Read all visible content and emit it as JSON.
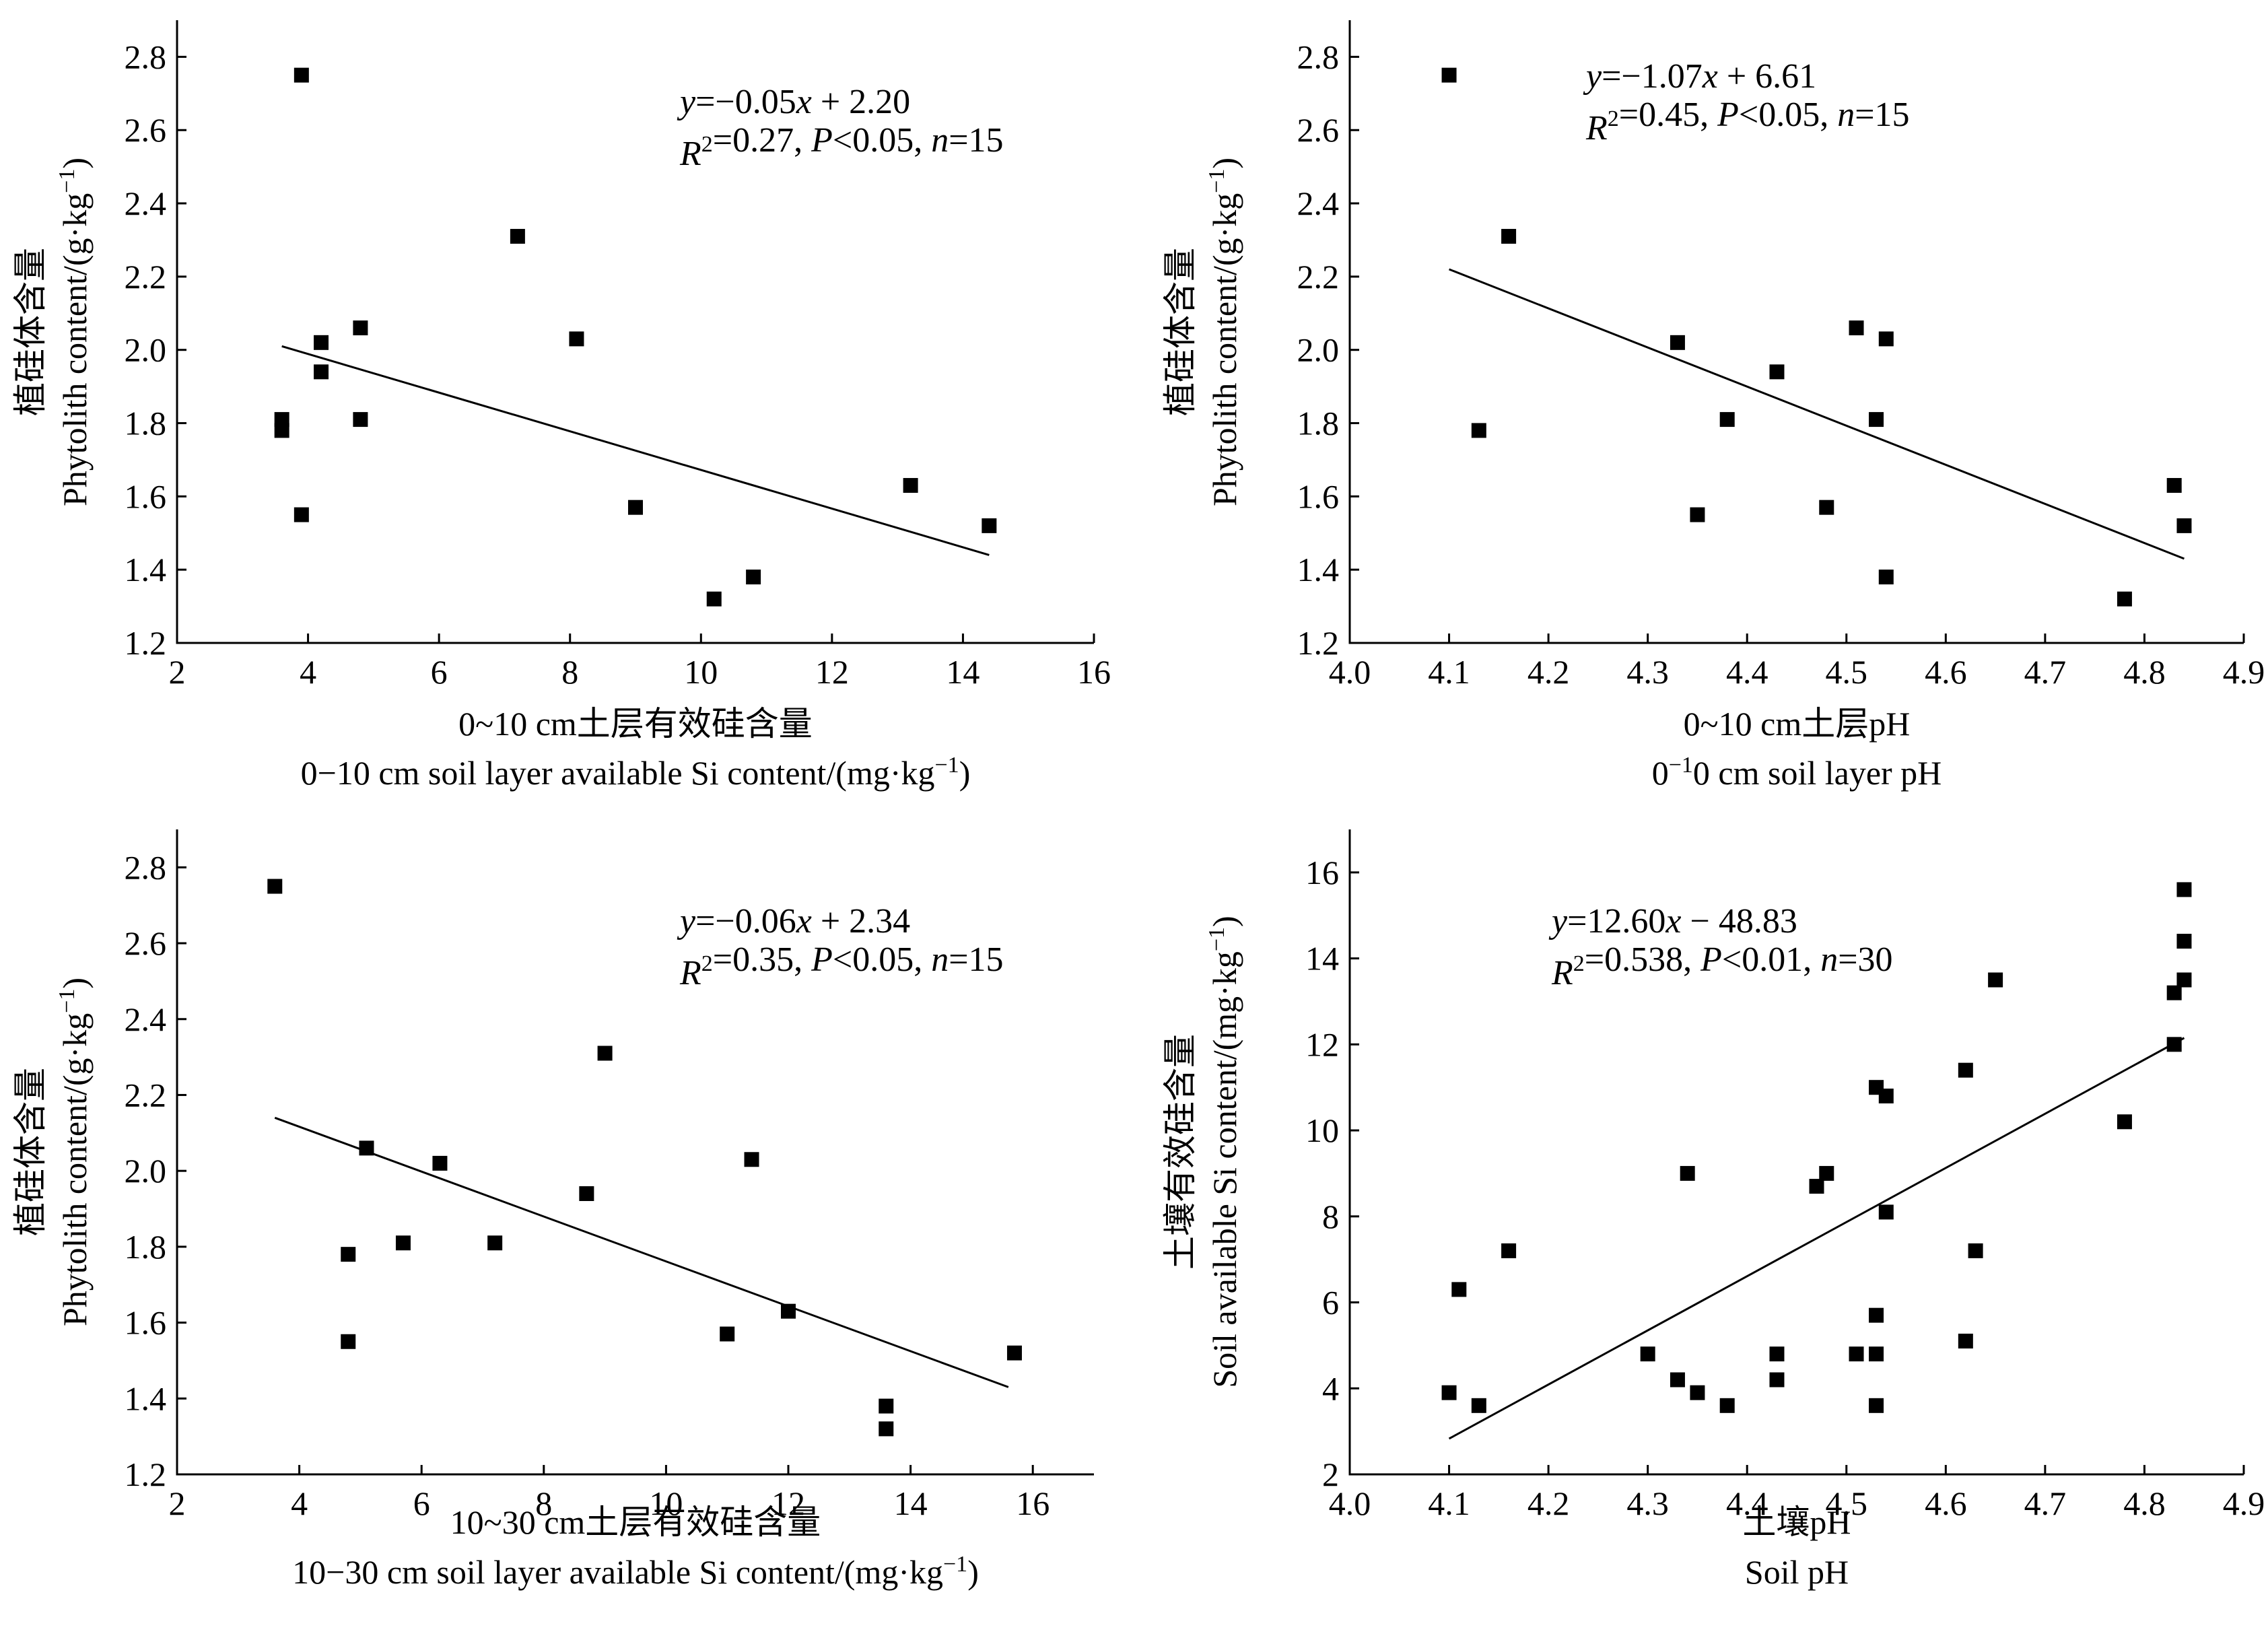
{
  "chart_data": [
    {
      "type": "scatter",
      "xlabel_cn": "0~10 cm土层有效硅含量",
      "xlabel_en": "0−10 cm soil layer available Si content/(mg·kg−1)",
      "ylabel_cn": "植硅体含量",
      "ylabel_en": "Phytolith content/(g·kg−1)",
      "xlim": [
        2,
        16
      ],
      "ylim": [
        1.2,
        2.9
      ],
      "xticks": [
        "2",
        "4",
        "6",
        "8",
        "10",
        "12",
        "14",
        "16"
      ],
      "yticks": [
        "1.2",
        "1.4",
        "1.6",
        "1.8",
        "2.0",
        "2.2",
        "2.4",
        "2.6",
        "2.8"
      ],
      "equation": "y=−0.05x + 2.20",
      "stats": "R2=0.27, P<0.05, n=15",
      "fit": {
        "x": [
          3.6,
          14.4
        ],
        "y": [
          2.01,
          1.44
        ]
      },
      "series": [
        {
          "x": [
            3.9,
            3.6,
            3.6,
            3.9,
            4.2,
            4.2,
            4.8,
            4.8,
            7.2,
            8.1,
            9.0,
            10.2,
            10.8,
            13.2,
            14.4
          ],
          "y": [
            2.75,
            1.81,
            1.78,
            1.55,
            2.02,
            1.94,
            2.06,
            1.81,
            2.31,
            2.03,
            1.57,
            1.32,
            1.38,
            1.63,
            1.52
          ]
        }
      ]
    },
    {
      "type": "scatter",
      "xlabel_cn": "0~10 cm土层pH",
      "xlabel_en": "0−10 cm soil layer pH",
      "ylabel_cn": "植硅体含量",
      "ylabel_en": "Phytolith content/(g·kg−1)",
      "xlim": [
        4.0,
        4.9
      ],
      "ylim": [
        1.2,
        2.9
      ],
      "xticks": [
        "4.0",
        "4.1",
        "4.2",
        "4.3",
        "4.4",
        "4.5",
        "4.6",
        "4.7",
        "4.8",
        "4.9"
      ],
      "yticks": [
        "1.2",
        "1.4",
        "1.6",
        "1.8",
        "2.0",
        "2.2",
        "2.4",
        "2.6",
        "2.8"
      ],
      "equation": "y=−1.07x + 6.61",
      "stats": "R2=0.45, P<0.05, n=15",
      "fit": {
        "x": [
          4.1,
          4.84
        ],
        "y": [
          2.22,
          1.43
        ]
      },
      "series": [
        {
          "x": [
            4.1,
            4.13,
            4.16,
            4.33,
            4.35,
            4.38,
            4.43,
            4.48,
            4.51,
            4.53,
            4.54,
            4.54,
            4.78,
            4.83,
            4.84
          ],
          "y": [
            2.75,
            1.78,
            2.31,
            2.02,
            1.55,
            1.81,
            1.94,
            1.57,
            2.06,
            1.81,
            2.03,
            1.38,
            1.32,
            1.63,
            1.52
          ]
        }
      ]
    },
    {
      "type": "scatter",
      "xlabel_cn": "10~30 cm土层有效硅含量",
      "xlabel_en": "10−30 cm soil layer available Si content/(mg·kg−1)",
      "ylabel_cn": "植硅体含量",
      "ylabel_en": "Phytolith content/(g·kg−1)",
      "xlim": [
        2,
        17
      ],
      "ylim": [
        1.2,
        2.9
      ],
      "xticks": [
        "2",
        "4",
        "6",
        "8",
        "10",
        "12",
        "14",
        "16"
      ],
      "yticks": [
        "1.2",
        "1.4",
        "1.6",
        "1.8",
        "2.0",
        "2.2",
        "2.4",
        "2.6",
        "2.8"
      ],
      "equation": "y=−0.06x + 2.34",
      "stats": "R2=0.35, P<0.05, n=15",
      "fit": {
        "x": [
          3.6,
          15.6
        ],
        "y": [
          2.14,
          1.43
        ]
      },
      "series": [
        {
          "x": [
            3.6,
            4.8,
            4.8,
            5.1,
            5.7,
            6.3,
            7.2,
            8.7,
            9.0,
            11.0,
            11.4,
            12.0,
            13.6,
            13.6,
            15.7
          ],
          "y": [
            2.75,
            1.78,
            1.55,
            2.06,
            1.81,
            2.02,
            1.81,
            1.94,
            2.31,
            1.57,
            2.03,
            1.63,
            1.38,
            1.32,
            1.52
          ]
        }
      ]
    },
    {
      "type": "scatter",
      "xlabel_cn": "土壤pH",
      "xlabel_en": "Soil pH",
      "ylabel_cn": "土壤有效硅含量",
      "ylabel_en": "Soil available Si content/(mg·kg−1)",
      "xlim": [
        4.0,
        4.9
      ],
      "ylim": [
        2,
        17
      ],
      "xticks": [
        "4.0",
        "4.1",
        "4.2",
        "4.3",
        "4.4",
        "4.5",
        "4.6",
        "4.7",
        "4.8",
        "4.9"
      ],
      "yticks": [
        "2",
        "4",
        "6",
        "8",
        "10",
        "12",
        "14",
        "16"
      ],
      "equation": "y=12.60x − 48.83",
      "stats": "R2=0.538, P<0.01, n=30",
      "fit": {
        "x": [
          4.1,
          4.84
        ],
        "y": [
          2.83,
          12.15
        ]
      },
      "series": [
        {
          "x": [
            4.1,
            4.11,
            4.13,
            4.16,
            4.3,
            4.33,
            4.34,
            4.35,
            4.38,
            4.43,
            4.43,
            4.47,
            4.48,
            4.51,
            4.53,
            4.53,
            4.53,
            4.53,
            4.54,
            4.54,
            4.62,
            4.62,
            4.63,
            4.65,
            4.78,
            4.83,
            4.83,
            4.84,
            4.84,
            4.84
          ],
          "y": [
            3.9,
            6.3,
            3.6,
            7.2,
            4.8,
            4.2,
            9.0,
            3.9,
            3.6,
            4.8,
            4.2,
            8.7,
            9.0,
            4.8,
            4.8,
            3.6,
            5.7,
            11.0,
            10.8,
            8.1,
            11.4,
            5.1,
            7.2,
            13.5,
            10.2,
            12.0,
            13.2,
            13.5,
            14.4,
            15.6
          ]
        }
      ]
    }
  ]
}
